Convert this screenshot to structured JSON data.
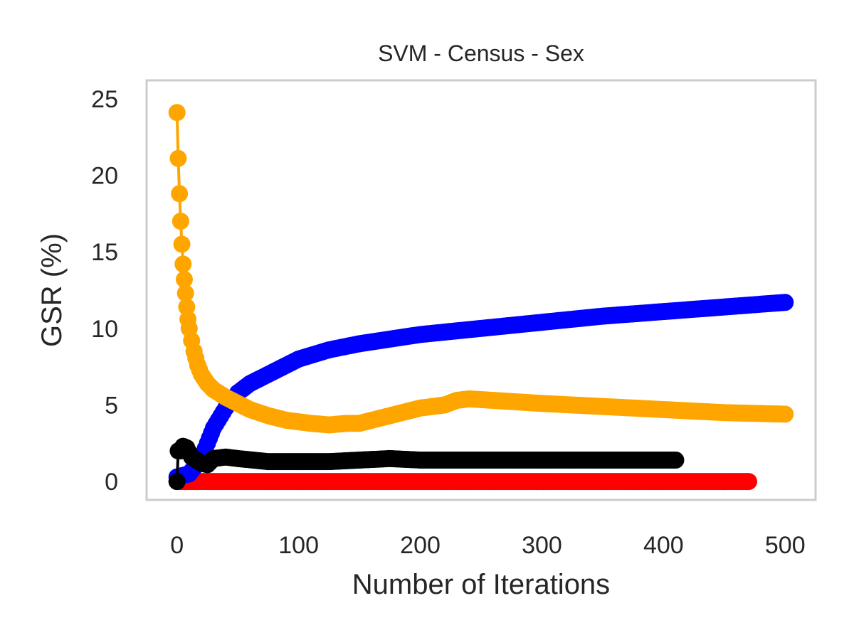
{
  "chart_data": {
    "type": "line",
    "title": "SVM - Census - Sex",
    "xlabel": "Number of Iterations",
    "ylabel": "GSR (%)",
    "xlim": [
      -25,
      525
    ],
    "ylim": [
      -1.2,
      26.2
    ],
    "xticks": [
      0,
      100,
      200,
      300,
      400,
      500
    ],
    "yticks": [
      0,
      5,
      10,
      15,
      20,
      25
    ],
    "grid": false,
    "series": [
      {
        "color": "#ff0000",
        "points": [
          [
            0,
            0
          ],
          [
            50,
            0
          ],
          [
            100,
            0
          ],
          [
            150,
            0
          ],
          [
            200,
            0
          ],
          [
            250,
            0
          ],
          [
            300,
            0
          ],
          [
            350,
            0
          ],
          [
            400,
            0
          ],
          [
            470,
            0
          ]
        ]
      },
      {
        "color": "#0000ff",
        "points": [
          [
            0,
            0.3
          ],
          [
            10,
            0.5
          ],
          [
            20,
            1.5
          ],
          [
            25,
            2.5
          ],
          [
            30,
            3.5
          ],
          [
            40,
            4.8
          ],
          [
            50,
            5.8
          ],
          [
            60,
            6.4
          ],
          [
            75,
            7.0
          ],
          [
            100,
            8.0
          ],
          [
            125,
            8.6
          ],
          [
            150,
            9.0
          ],
          [
            175,
            9.3
          ],
          [
            200,
            9.6
          ],
          [
            250,
            10.0
          ],
          [
            300,
            10.4
          ],
          [
            350,
            10.8
          ],
          [
            400,
            11.1
          ],
          [
            450,
            11.4
          ],
          [
            500,
            11.7
          ]
        ]
      },
      {
        "color": "#ffa500",
        "points": [
          [
            0,
            24.1
          ],
          [
            1,
            21.1
          ],
          [
            2,
            18.8
          ],
          [
            3,
            17.0
          ],
          [
            4,
            15.5
          ],
          [
            5,
            14.2
          ],
          [
            6,
            13.2
          ],
          [
            7,
            12.3
          ],
          [
            8,
            11.4
          ],
          [
            9,
            10.6
          ],
          [
            10,
            10.0
          ],
          [
            12,
            9.2
          ],
          [
            14,
            8.5
          ],
          [
            17,
            7.6
          ],
          [
            20,
            7.0
          ],
          [
            25,
            6.4
          ],
          [
            30,
            6.0
          ],
          [
            40,
            5.5
          ],
          [
            50,
            5.1
          ],
          [
            60,
            4.7
          ],
          [
            75,
            4.3
          ],
          [
            90,
            4.0
          ],
          [
            100,
            3.9
          ],
          [
            110,
            3.8
          ],
          [
            125,
            3.7
          ],
          [
            140,
            3.8
          ],
          [
            150,
            3.8
          ],
          [
            160,
            4.0
          ],
          [
            175,
            4.3
          ],
          [
            190,
            4.6
          ],
          [
            200,
            4.8
          ],
          [
            220,
            5.0
          ],
          [
            230,
            5.3
          ],
          [
            240,
            5.4
          ],
          [
            260,
            5.3
          ],
          [
            300,
            5.1
          ],
          [
            350,
            4.9
          ],
          [
            400,
            4.7
          ],
          [
            450,
            4.5
          ],
          [
            500,
            4.4
          ]
        ]
      },
      {
        "color": "#000000",
        "points": [
          [
            0,
            0
          ],
          [
            1,
            2.0
          ],
          [
            3,
            2.0
          ],
          [
            5,
            2.3
          ],
          [
            8,
            2.2
          ],
          [
            12,
            1.6
          ],
          [
            20,
            1.2
          ],
          [
            25,
            1.1
          ],
          [
            30,
            1.5
          ],
          [
            40,
            1.6
          ],
          [
            50,
            1.5
          ],
          [
            75,
            1.3
          ],
          [
            100,
            1.3
          ],
          [
            125,
            1.3
          ],
          [
            150,
            1.4
          ],
          [
            175,
            1.5
          ],
          [
            200,
            1.4
          ],
          [
            250,
            1.4
          ],
          [
            300,
            1.4
          ],
          [
            350,
            1.4
          ],
          [
            400,
            1.4
          ],
          [
            410,
            1.4
          ]
        ]
      }
    ]
  }
}
